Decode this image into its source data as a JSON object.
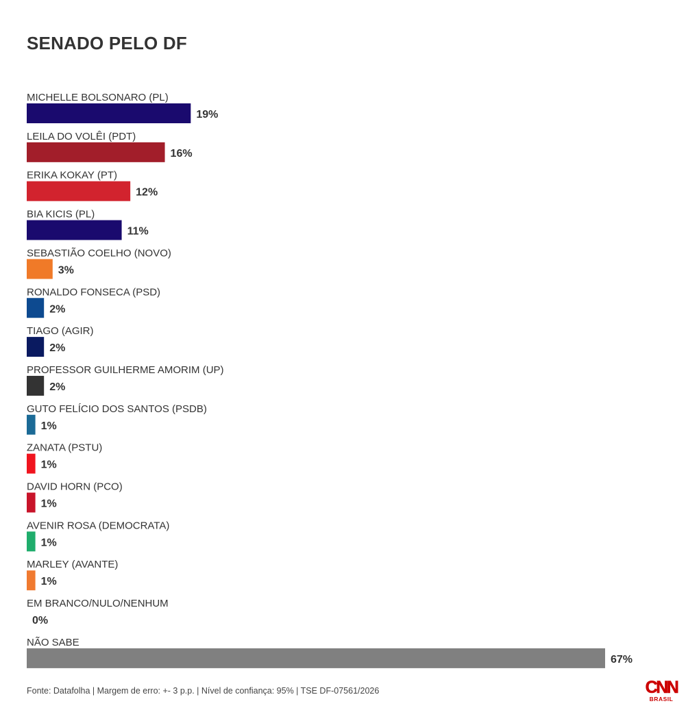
{
  "title": "SENADO PELO DF",
  "footer": "Fonte: Datafolha | Margem de erro: +- 3 p.p. | Nível de confiança: 95% | TSE DF-07561/2026",
  "logo": {
    "main": "CNN",
    "sub": "BRASIL",
    "color": "#cc0000"
  },
  "chart_data": {
    "type": "bar",
    "orientation": "horizontal",
    "unit": "%",
    "categories": [
      "MICHELLE BOLSONARO (PL)",
      "LEILA DO VOLÊI (PDT)",
      "ERIKA KOKAY (PT)",
      "BIA KICIS (PL)",
      "SEBASTIÃO COELHO (NOVO)",
      "RONALDO FONSECA (PSD)",
      "TIAGO (AGIR)",
      "PROFESSOR GUILHERME AMORIM (UP)",
      "GUTO FELÍCIO DOS SANTOS (PSDB)",
      "ZANATA (PSTU)",
      "DAVID HORN (PCO)",
      "AVENIR ROSA (DEMOCRATA)",
      "MARLEY (AVANTE)",
      "EM BRANCO/NULO/NENHUM",
      "NÃO SABE"
    ],
    "values": [
      19,
      16,
      12,
      11,
      3,
      2,
      2,
      2,
      1,
      1,
      1,
      1,
      1,
      0,
      67
    ],
    "value_labels": [
      "19%",
      "16%",
      "12%",
      "11%",
      "3%",
      "2%",
      "2%",
      "2%",
      "1%",
      "1%",
      "1%",
      "1%",
      "1%",
      "0%",
      "67%"
    ],
    "colors": [
      "#1a0a6e",
      "#a21e2a",
      "#d2232e",
      "#1a0a6e",
      "#f07a28",
      "#0d4a90",
      "#0a1a60",
      "#333333",
      "#1b6a96",
      "#f0141e",
      "#c8142a",
      "#1fad6c",
      "#f07a30",
      "#888888",
      "#808080"
    ],
    "xlim": [
      0,
      67
    ],
    "grid": false,
    "legend": "none"
  }
}
